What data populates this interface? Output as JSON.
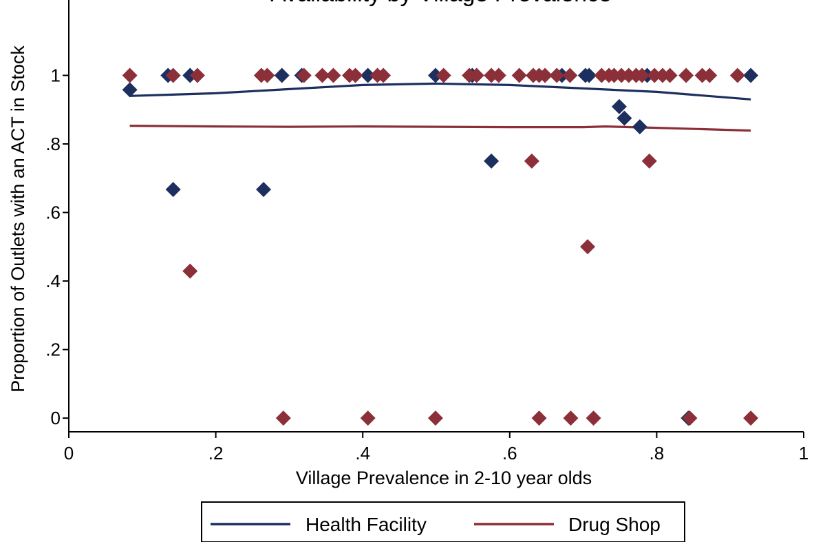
{
  "chart_data": {
    "type": "scatter",
    "title": "Availability by Village Prevalence",
    "xlabel": "Village Prevalence in 2-10 year olds",
    "ylabel": "Proportion of Outlets with an ACT in Stock",
    "xlim": [
      0,
      1
    ],
    "ylim": [
      -0.04,
      1.22
    ],
    "xticks": [
      0,
      0.2,
      0.4,
      0.6,
      0.8,
      1
    ],
    "xtick_labels": [
      "0",
      ".2",
      ".4",
      ".6",
      ".8",
      "1"
    ],
    "yticks": [
      0,
      0.2,
      0.4,
      0.6,
      0.8,
      1
    ],
    "ytick_labels": [
      "0",
      ".2",
      ".4",
      ".6",
      ".8",
      "1"
    ],
    "grid": false,
    "legend_position": "bottom",
    "marker": "diamond",
    "series": [
      {
        "name": "Health Facility",
        "color": "#1c2f5e",
        "points": [
          [
            0.083,
            0.958
          ],
          [
            0.135,
            1
          ],
          [
            0.142,
            0.667
          ],
          [
            0.165,
            1
          ],
          [
            0.265,
            0.667
          ],
          [
            0.29,
            1
          ],
          [
            0.317,
            1
          ],
          [
            0.407,
            1
          ],
          [
            0.499,
            1
          ],
          [
            0.549,
            1
          ],
          [
            0.575,
            0.75
          ],
          [
            0.671,
            1
          ],
          [
            0.703,
            1
          ],
          [
            0.708,
            1
          ],
          [
            0.749,
            0.909
          ],
          [
            0.756,
            0.875
          ],
          [
            0.777,
            0.85
          ],
          [
            0.787,
            1
          ],
          [
            0.843,
            0
          ],
          [
            0.928,
            1
          ]
        ],
        "fit": [
          [
            0.083,
            0.94
          ],
          [
            0.2,
            0.948
          ],
          [
            0.3,
            0.96
          ],
          [
            0.4,
            0.972
          ],
          [
            0.5,
            0.976
          ],
          [
            0.6,
            0.972
          ],
          [
            0.7,
            0.962
          ],
          [
            0.8,
            0.952
          ],
          [
            0.928,
            0.93
          ]
        ]
      },
      {
        "name": "Drug Shop",
        "color": "#8b2f38",
        "points": [
          [
            0.083,
            1
          ],
          [
            0.142,
            1
          ],
          [
            0.165,
            0.429
          ],
          [
            0.175,
            1
          ],
          [
            0.262,
            1
          ],
          [
            0.27,
            1
          ],
          [
            0.292,
            0
          ],
          [
            0.32,
            1
          ],
          [
            0.345,
            1
          ],
          [
            0.36,
            1
          ],
          [
            0.382,
            1
          ],
          [
            0.39,
            1
          ],
          [
            0.407,
            0
          ],
          [
            0.42,
            1
          ],
          [
            0.428,
            1
          ],
          [
            0.499,
            0
          ],
          [
            0.51,
            1
          ],
          [
            0.545,
            1
          ],
          [
            0.555,
            1
          ],
          [
            0.575,
            1
          ],
          [
            0.585,
            1
          ],
          [
            0.613,
            1
          ],
          [
            0.63,
            0.75
          ],
          [
            0.632,
            1
          ],
          [
            0.64,
            1
          ],
          [
            0.64,
            0
          ],
          [
            0.648,
            1
          ],
          [
            0.664,
            1
          ],
          [
            0.682,
            1
          ],
          [
            0.683,
            0
          ],
          [
            0.706,
            0.5
          ],
          [
            0.714,
            0
          ],
          [
            0.725,
            1
          ],
          [
            0.735,
            1
          ],
          [
            0.742,
            1
          ],
          [
            0.752,
            1
          ],
          [
            0.762,
            1
          ],
          [
            0.772,
            1
          ],
          [
            0.78,
            1
          ],
          [
            0.79,
            0.75
          ],
          [
            0.797,
            1
          ],
          [
            0.808,
            1
          ],
          [
            0.818,
            1
          ],
          [
            0.84,
            1
          ],
          [
            0.845,
            0
          ],
          [
            0.862,
            1
          ],
          [
            0.872,
            1
          ],
          [
            0.91,
            1
          ],
          [
            0.928,
            0
          ]
        ],
        "fit": [
          [
            0.083,
            0.853
          ],
          [
            0.2,
            0.851
          ],
          [
            0.3,
            0.85
          ],
          [
            0.4,
            0.851
          ],
          [
            0.5,
            0.85
          ],
          [
            0.6,
            0.849
          ],
          [
            0.7,
            0.849
          ],
          [
            0.73,
            0.851
          ],
          [
            0.8,
            0.847
          ],
          [
            0.928,
            0.839
          ]
        ]
      }
    ]
  }
}
